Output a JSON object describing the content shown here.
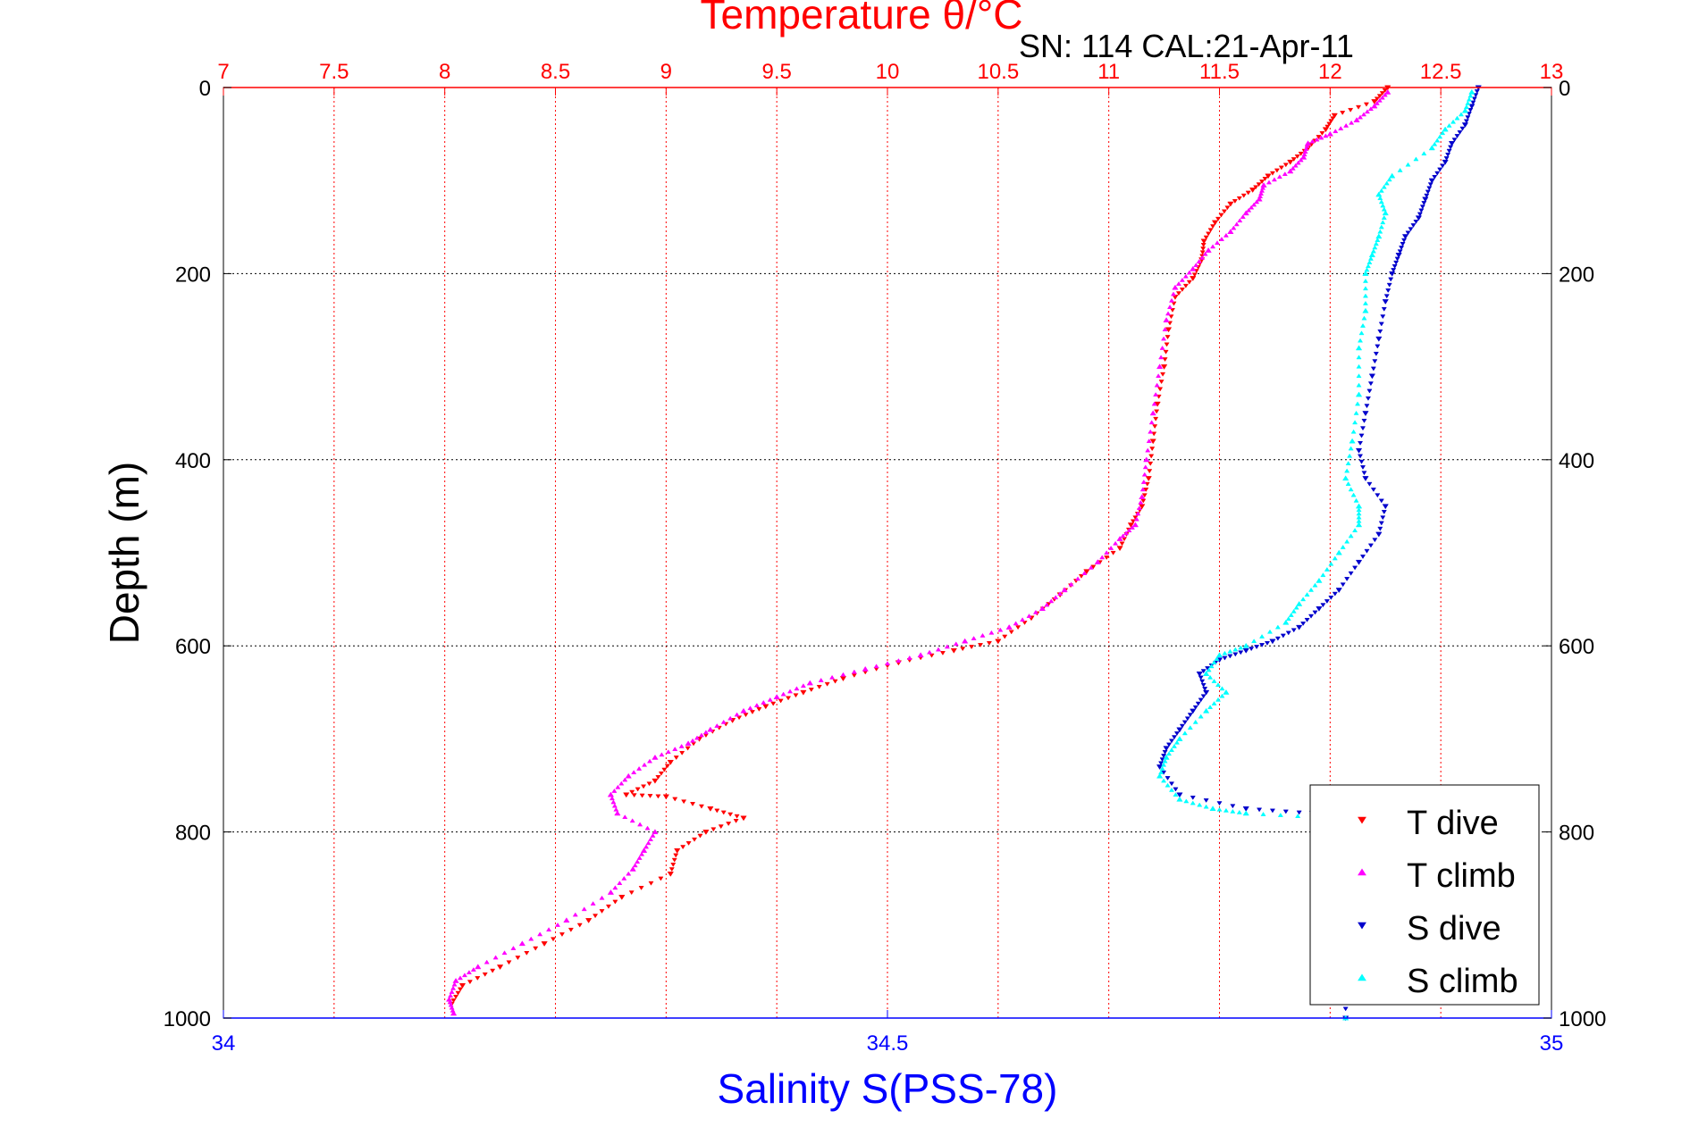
{
  "chart_data": {
    "type": "scatter",
    "title": "Temperature θ/°C",
    "subtitle": "SN: 114  CAL:21-Apr-11",
    "xlabel_top": "Temperature θ/°C",
    "xlabel_bottom": "Salinity S(PSS-78)",
    "ylabel": "Depth (m)",
    "grid": true,
    "legend_position": "bottom-right",
    "top_axis": {
      "range": [
        7,
        13
      ],
      "ticks": [
        "7",
        "7.5",
        "8",
        "8.5",
        "9",
        "9.5",
        "10",
        "10.5",
        "11",
        "11.5",
        "12",
        "12.5",
        "13"
      ]
    },
    "bottom_axis": {
      "range": [
        34,
        35
      ],
      "ticks": [
        "34",
        "34.5",
        "35"
      ]
    },
    "y_axis": {
      "range": [
        0,
        1000
      ],
      "reversed": true,
      "ticks": [
        "0",
        "200",
        "400",
        "600",
        "800",
        "1000"
      ]
    },
    "colors": {
      "temperature_axis": "#ff0000",
      "salinity_axis": "#0000ff"
    },
    "series": [
      {
        "name": "T dive",
        "axis": "temperature",
        "marker": "triangle-down",
        "color": "#ff0000",
        "points": [
          [
            12.26,
            0
          ],
          [
            12.2,
            15
          ],
          [
            12.02,
            30
          ],
          [
            11.98,
            45
          ],
          [
            11.9,
            65
          ],
          [
            11.82,
            80
          ],
          [
            11.72,
            95
          ],
          [
            11.65,
            110
          ],
          [
            11.55,
            125
          ],
          [
            11.48,
            145
          ],
          [
            11.43,
            165
          ],
          [
            11.42,
            185
          ],
          [
            11.38,
            205
          ],
          [
            11.3,
            225
          ],
          [
            11.27,
            260
          ],
          [
            11.25,
            300
          ],
          [
            11.22,
            340
          ],
          [
            11.2,
            380
          ],
          [
            11.18,
            420
          ],
          [
            11.15,
            450
          ],
          [
            11.1,
            470
          ],
          [
            11.05,
            495
          ],
          [
            10.9,
            520
          ],
          [
            10.78,
            545
          ],
          [
            10.65,
            570
          ],
          [
            10.5,
            595
          ],
          [
            10.3,
            605
          ],
          [
            10.05,
            618
          ],
          [
            9.8,
            635
          ],
          [
            9.62,
            650
          ],
          [
            9.45,
            665
          ],
          [
            9.3,
            680
          ],
          [
            9.15,
            700
          ],
          [
            9.02,
            725
          ],
          [
            8.95,
            745
          ],
          [
            8.82,
            760
          ],
          [
            9.0,
            762
          ],
          [
            9.2,
            775
          ],
          [
            9.35,
            785
          ],
          [
            9.18,
            800
          ],
          [
            9.05,
            820
          ],
          [
            9.02,
            845
          ],
          [
            8.8,
            870
          ],
          [
            8.65,
            895
          ],
          [
            8.45,
            920
          ],
          [
            8.25,
            945
          ],
          [
            8.08,
            965
          ],
          [
            8.03,
            985
          ]
        ]
      },
      {
        "name": "T climb",
        "axis": "temperature",
        "marker": "triangle-up",
        "color": "#ff00ff",
        "points": [
          [
            12.26,
            5
          ],
          [
            12.2,
            20
          ],
          [
            12.12,
            35
          ],
          [
            12.0,
            50
          ],
          [
            11.9,
            60
          ],
          [
            11.88,
            75
          ],
          [
            11.82,
            90
          ],
          [
            11.7,
            105
          ],
          [
            11.68,
            120
          ],
          [
            11.62,
            135
          ],
          [
            11.55,
            155
          ],
          [
            11.45,
            175
          ],
          [
            11.38,
            195
          ],
          [
            11.3,
            215
          ],
          [
            11.26,
            250
          ],
          [
            11.23,
            300
          ],
          [
            11.2,
            350
          ],
          [
            11.17,
            400
          ],
          [
            11.15,
            440
          ],
          [
            11.12,
            470
          ],
          [
            11.05,
            485
          ],
          [
            10.95,
            510
          ],
          [
            10.8,
            540
          ],
          [
            10.7,
            560
          ],
          [
            10.55,
            580
          ],
          [
            10.35,
            595
          ],
          [
            10.15,
            610
          ],
          [
            9.9,
            625
          ],
          [
            9.65,
            640
          ],
          [
            9.5,
            655
          ],
          [
            9.35,
            670
          ],
          [
            9.2,
            690
          ],
          [
            9.1,
            705
          ],
          [
            8.95,
            720
          ],
          [
            8.83,
            740
          ],
          [
            8.75,
            760
          ],
          [
            8.78,
            780
          ],
          [
            8.95,
            800
          ],
          [
            8.9,
            820
          ],
          [
            8.85,
            840
          ],
          [
            8.75,
            865
          ],
          [
            8.55,
            895
          ],
          [
            8.35,
            920
          ],
          [
            8.15,
            945
          ],
          [
            8.05,
            960
          ],
          [
            8.02,
            980
          ],
          [
            8.04,
            995
          ]
        ]
      },
      {
        "name": "S dive",
        "axis": "salinity",
        "marker": "triangle-down",
        "color": "#0000cc",
        "points": [
          [
            34.945,
            0
          ],
          [
            34.94,
            20
          ],
          [
            34.935,
            40
          ],
          [
            34.925,
            60
          ],
          [
            34.92,
            80
          ],
          [
            34.91,
            100
          ],
          [
            34.905,
            120
          ],
          [
            34.9,
            140
          ],
          [
            34.89,
            160
          ],
          [
            34.885,
            180
          ],
          [
            34.88,
            200
          ],
          [
            34.875,
            230
          ],
          [
            34.87,
            270
          ],
          [
            34.865,
            310
          ],
          [
            34.86,
            350
          ],
          [
            34.855,
            390
          ],
          [
            34.86,
            420
          ],
          [
            34.875,
            450
          ],
          [
            34.87,
            480
          ],
          [
            34.855,
            510
          ],
          [
            34.84,
            540
          ],
          [
            34.825,
            560
          ],
          [
            34.81,
            580
          ],
          [
            34.79,
            595
          ],
          [
            34.77,
            605
          ],
          [
            34.75,
            615
          ],
          [
            34.735,
            630
          ],
          [
            34.74,
            650
          ],
          [
            34.73,
            670
          ],
          [
            34.72,
            690
          ],
          [
            34.71,
            710
          ],
          [
            34.705,
            730
          ],
          [
            34.72,
            760
          ],
          [
            34.77,
            775
          ],
          [
            34.82,
            780
          ],
          [
            34.84,
            790
          ],
          [
            34.845,
            860
          ],
          [
            34.845,
            950
          ],
          [
            34.845,
            1000
          ]
        ]
      },
      {
        "name": "S climb",
        "axis": "salinity",
        "marker": "triangle-up",
        "color": "#00ffff",
        "points": [
          [
            34.94,
            5
          ],
          [
            34.935,
            25
          ],
          [
            34.92,
            45
          ],
          [
            34.91,
            65
          ],
          [
            34.88,
            95
          ],
          [
            34.87,
            115
          ],
          [
            34.875,
            135
          ],
          [
            34.87,
            160
          ],
          [
            34.865,
            180
          ],
          [
            34.86,
            200
          ],
          [
            34.86,
            240
          ],
          [
            34.855,
            280
          ],
          [
            34.855,
            330
          ],
          [
            34.85,
            380
          ],
          [
            34.845,
            420
          ],
          [
            34.855,
            450
          ],
          [
            34.855,
            470
          ],
          [
            34.84,
            500
          ],
          [
            34.825,
            530
          ],
          [
            34.81,
            555
          ],
          [
            34.8,
            575
          ],
          [
            34.77,
            600
          ],
          [
            34.75,
            610
          ],
          [
            34.74,
            630
          ],
          [
            34.755,
            650
          ],
          [
            34.74,
            670
          ],
          [
            34.72,
            700
          ],
          [
            34.71,
            720
          ],
          [
            34.705,
            740
          ],
          [
            34.72,
            765
          ],
          [
            34.745,
            775
          ],
          [
            34.77,
            780
          ],
          [
            34.835,
            785
          ],
          [
            34.845,
            1000
          ]
        ]
      }
    ]
  },
  "legend": {
    "items": [
      {
        "label": "T dive",
        "color": "#ff0000",
        "marker": "triangle-down"
      },
      {
        "label": "T climb",
        "color": "#ff00ff",
        "marker": "triangle-up"
      },
      {
        "label": "S dive",
        "color": "#0000cc",
        "marker": "triangle-down"
      },
      {
        "label": "S climb",
        "color": "#00ffff",
        "marker": "triangle-up"
      }
    ]
  }
}
